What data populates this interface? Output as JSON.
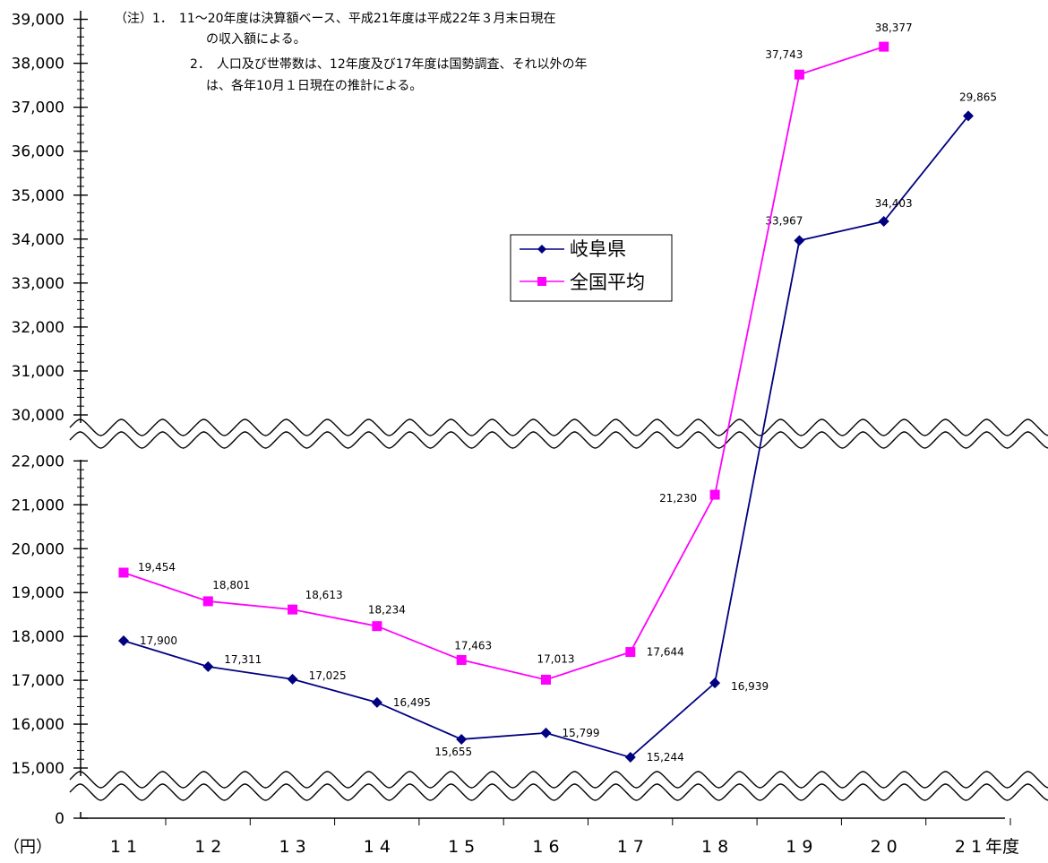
{
  "chart_data": {
    "type": "line",
    "categories": [
      "11",
      "12",
      "13",
      "14",
      "15",
      "16",
      "17",
      "18",
      "19",
      "20",
      "21"
    ],
    "x_axis_suffix": "年度",
    "y_unit": "（円）",
    "y_ticks_lower": [
      "0",
      "15,000",
      "16,000",
      "17,000",
      "18,000",
      "19,000",
      "20,000",
      "21,000",
      "22,000"
    ],
    "y_ticks_upper": [
      "30,000",
      "31,000",
      "32,000",
      "33,000",
      "34,000",
      "35,000",
      "36,000",
      "37,000",
      "38,000",
      "39,000"
    ],
    "axis_break": true,
    "series": [
      {
        "name": "岐阜県",
        "color": "#000080",
        "marker": "diamond",
        "values": [
          17900,
          17311,
          17025,
          16495,
          15655,
          15799,
          15244,
          16939,
          33967,
          34403,
          29865
        ],
        "labels": [
          "17,900",
          "17,311",
          "17,025",
          "16,495",
          "15,655",
          "15,799",
          "15,244",
          "16,939",
          "33,967",
          "34,403",
          "29,865"
        ]
      },
      {
        "name": "全国平均",
        "color": "#ff00ff",
        "marker": "square",
        "values": [
          19454,
          18801,
          18613,
          18234,
          17463,
          17013,
          17644,
          21230,
          37743,
          38377,
          null
        ],
        "labels": [
          "19,454",
          "18,801",
          "18,613",
          "18,234",
          "17,463",
          "17,013",
          "17,644",
          "21,230",
          "37,743",
          "38,377",
          null
        ]
      }
    ],
    "legend_position": "center-right",
    "notes": [
      "（注）1．　11～20年度は決算額ベース、平成21年度は平成22年３月末日現在",
      "の収入額による。",
      "2．　人口及び世帯数は、12年度及び17年度は国勢調査、それ以外の年",
      "は、各年10月１日現在の推計による。"
    ]
  }
}
